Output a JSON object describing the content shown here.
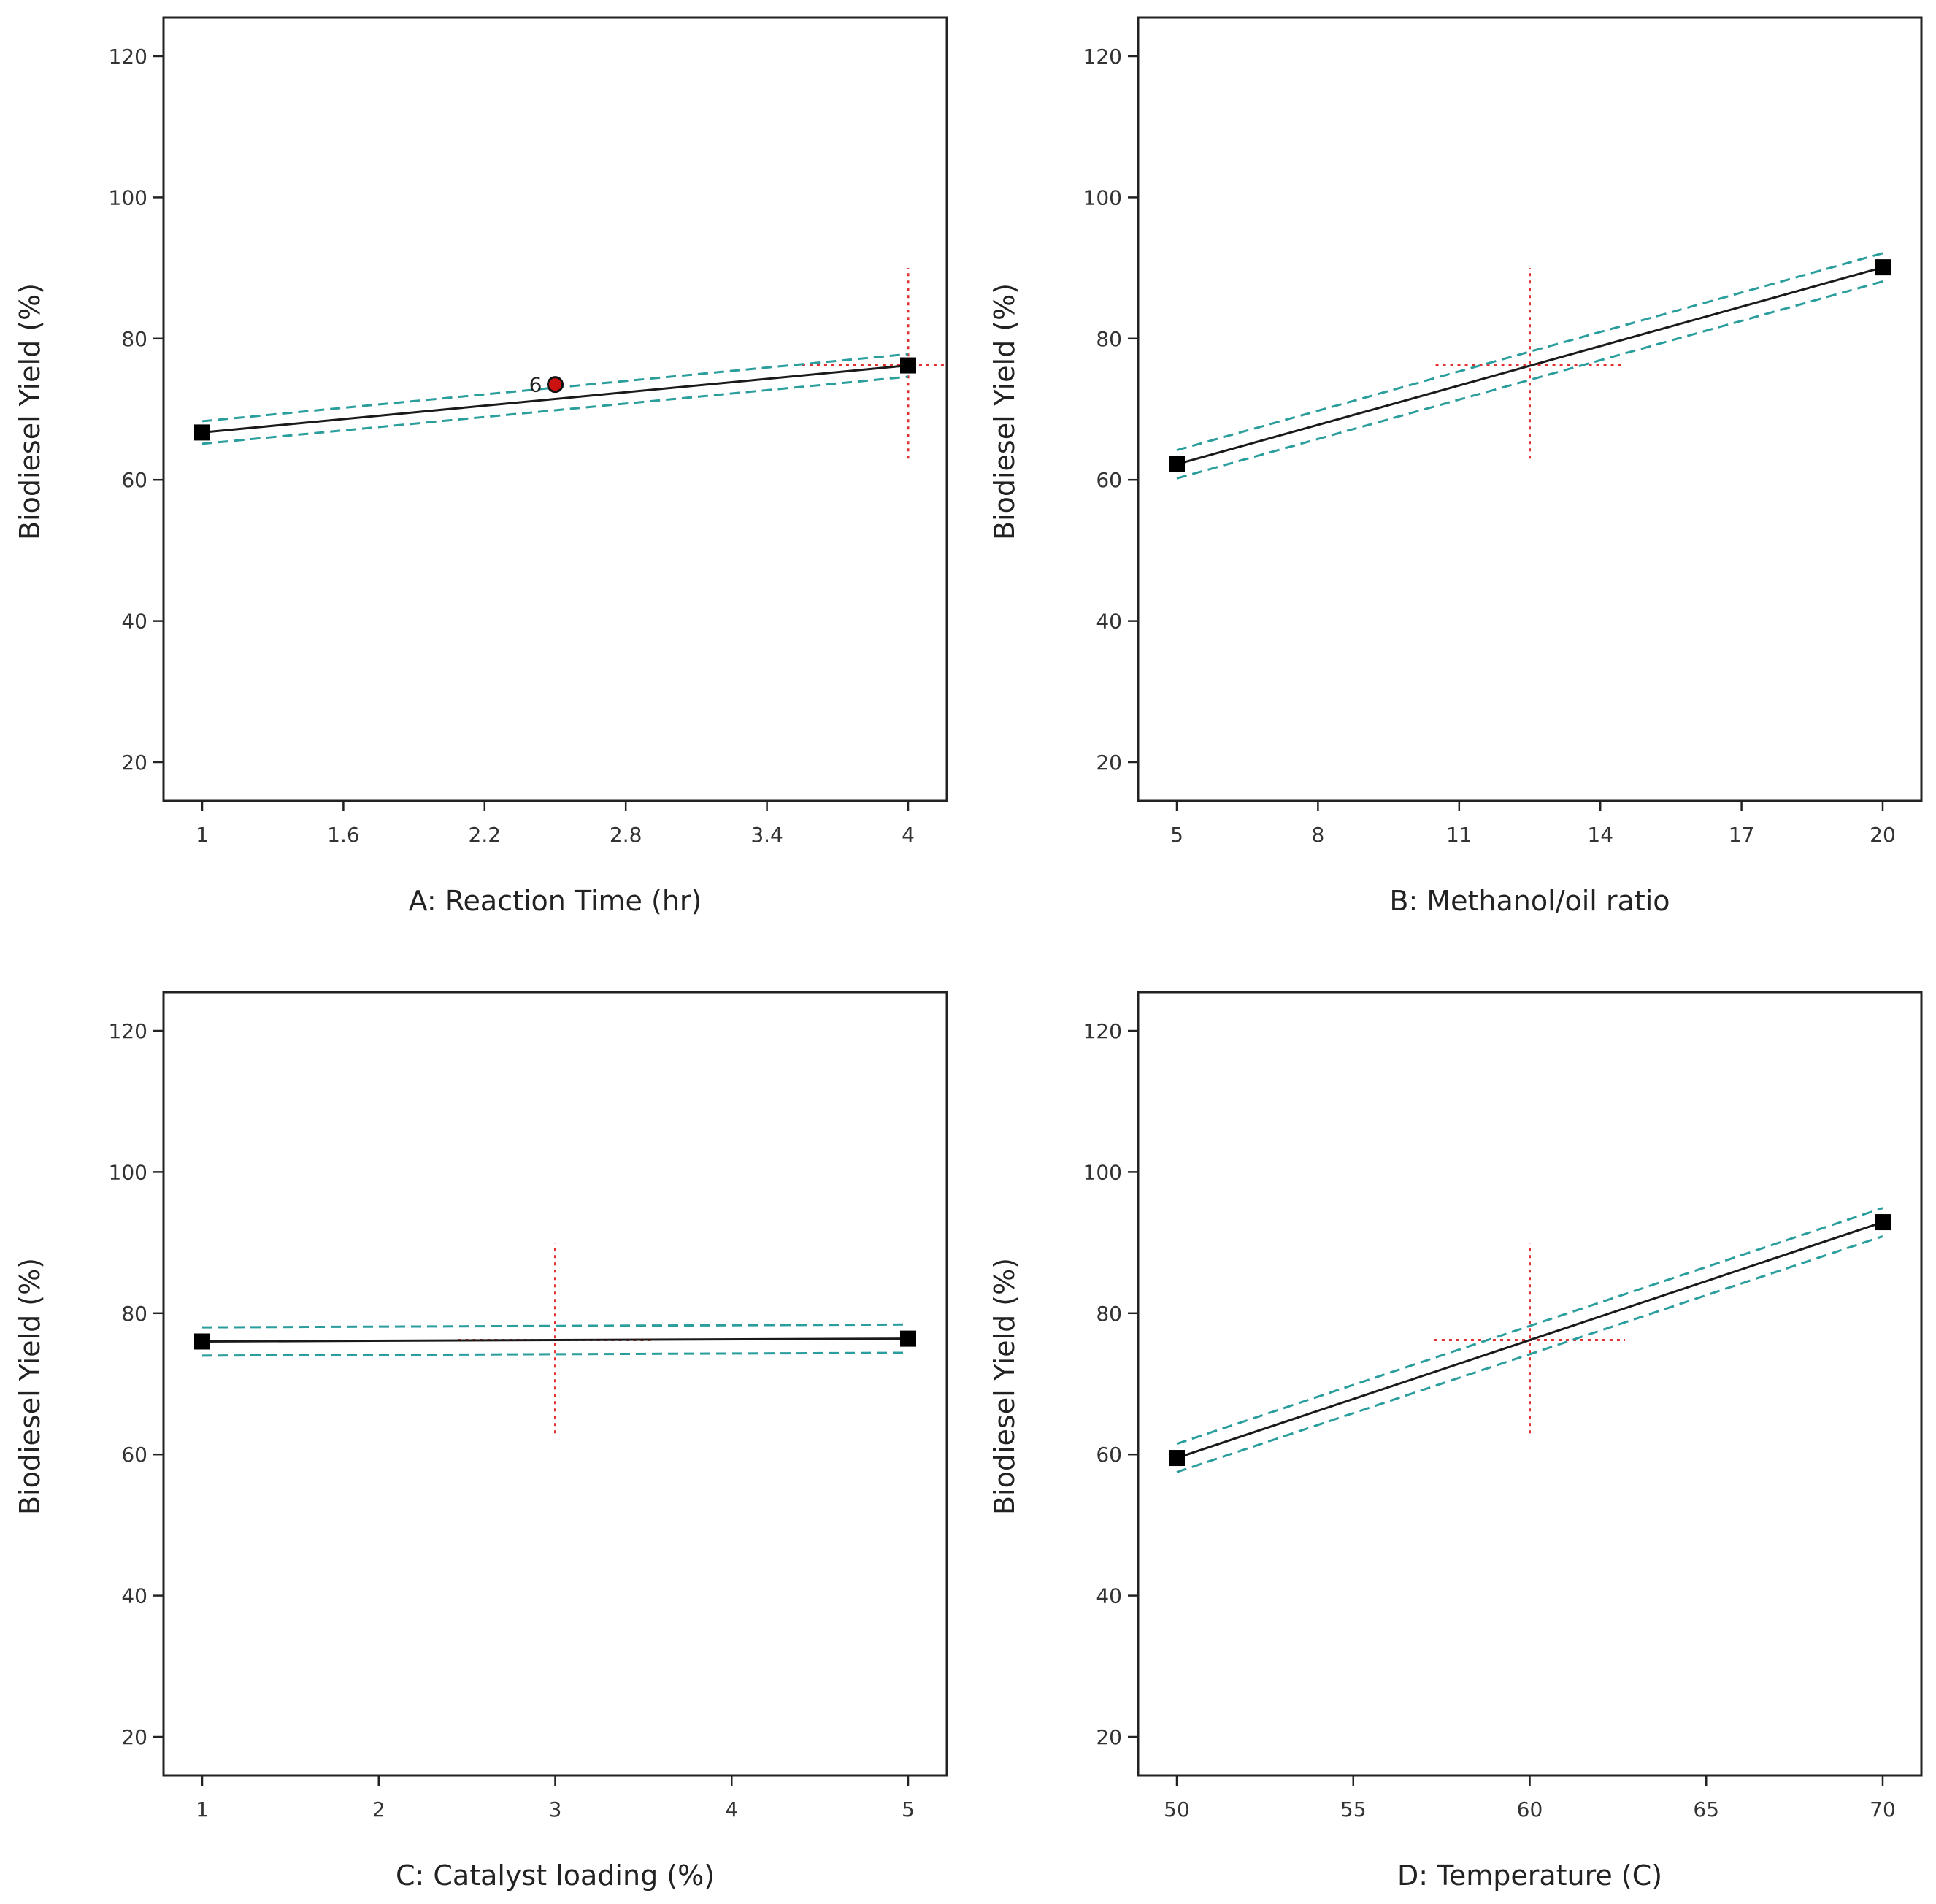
{
  "chart_data": [
    {
      "id": "A",
      "type": "line",
      "xlabel": "A: Reaction Time (hr)",
      "ylabel": "Biodiesel Yield (%)",
      "xlim": [
        1,
        4
      ],
      "ylim": [
        20,
        120
      ],
      "xticks": [
        "1",
        "1.6",
        "2.2",
        "2.8",
        "3.4",
        "4"
      ],
      "yticks": [
        "20",
        "40",
        "60",
        "80",
        "100",
        "120"
      ],
      "line": {
        "x": [
          1,
          4
        ],
        "y": [
          66.7,
          76.2
        ]
      },
      "ci_upper": {
        "x": [
          1,
          4
        ],
        "y": [
          68.3,
          77.8
        ]
      },
      "ci_lower": {
        "x": [
          1,
          4
        ],
        "y": [
          65.1,
          74.6
        ]
      },
      "endpoints": [
        {
          "x": 1,
          "y": 66.7
        },
        {
          "x": 4,
          "y": 76.2
        }
      ],
      "design_point": {
        "x": 2.5,
        "y": 73.5,
        "label": "6"
      },
      "crosshair": {
        "x": 4,
        "y": 76.2,
        "x_extent": [
          3.55,
          4.3
        ],
        "y_extent": [
          63,
          90
        ]
      }
    },
    {
      "id": "B",
      "type": "line",
      "xlabel": "B: Methanol/oil ratio",
      "ylabel": "Biodiesel Yield (%)",
      "xlim": [
        5,
        20
      ],
      "ylim": [
        20,
        120
      ],
      "xticks": [
        "5",
        "8",
        "11",
        "14",
        "17",
        "20"
      ],
      "yticks": [
        "20",
        "40",
        "60",
        "80",
        "100",
        "120"
      ],
      "line": {
        "x": [
          5,
          20
        ],
        "y": [
          62.2,
          90.1
        ]
      },
      "ci_upper": {
        "x": [
          5,
          20
        ],
        "y": [
          64.2,
          92.1
        ]
      },
      "ci_lower": {
        "x": [
          5,
          20
        ],
        "y": [
          60.2,
          88.1
        ]
      },
      "endpoints": [
        {
          "x": 5,
          "y": 62.2
        },
        {
          "x": 20,
          "y": 90.1
        }
      ],
      "crosshair": {
        "x": 12.5,
        "y": 76.2,
        "x_extent": [
          10.5,
          14.5
        ],
        "y_extent": [
          63,
          90
        ]
      }
    },
    {
      "id": "C",
      "type": "line",
      "xlabel": "C: Catalyst loading (%)",
      "ylabel": "Biodiesel Yield (%)",
      "xlim": [
        1,
        5
      ],
      "ylim": [
        20,
        120
      ],
      "xticks": [
        "1",
        "2",
        "3",
        "4",
        "5"
      ],
      "yticks": [
        "20",
        "40",
        "60",
        "80",
        "100",
        "120"
      ],
      "line": {
        "x": [
          1,
          5
        ],
        "y": [
          76.0,
          76.4
        ]
      },
      "ci_upper": {
        "x": [
          1,
          5
        ],
        "y": [
          78.0,
          78.4
        ]
      },
      "ci_lower": {
        "x": [
          1,
          5
        ],
        "y": [
          74.0,
          74.4
        ]
      },
      "endpoints": [
        {
          "x": 1,
          "y": 76.0
        },
        {
          "x": 5,
          "y": 76.4
        }
      ],
      "crosshair": {
        "x": 3,
        "y": 76.2,
        "x_extent": [
          2.45,
          3.55
        ],
        "y_extent": [
          63,
          90
        ]
      }
    },
    {
      "id": "D",
      "type": "line",
      "xlabel": "D: Temperature (C)",
      "ylabel": "Biodiesel Yield (%)",
      "xlim": [
        50,
        70
      ],
      "ylim": [
        20,
        120
      ],
      "xticks": [
        "50",
        "55",
        "60",
        "65",
        "70"
      ],
      "yticks": [
        "20",
        "40",
        "60",
        "80",
        "100",
        "120"
      ],
      "line": {
        "x": [
          50,
          70
        ],
        "y": [
          59.5,
          92.9
        ]
      },
      "ci_upper": {
        "x": [
          50,
          70
        ],
        "y": [
          61.5,
          94.9
        ]
      },
      "ci_lower": {
        "x": [
          50,
          70
        ],
        "y": [
          57.5,
          90.9
        ]
      },
      "endpoints": [
        {
          "x": 50,
          "y": 59.5
        },
        {
          "x": 70,
          "y": 92.9
        }
      ],
      "crosshair": {
        "x": 60,
        "y": 76.2,
        "x_extent": [
          57.3,
          62.7
        ],
        "y_extent": [
          63,
          90
        ]
      }
    }
  ],
  "colors": {
    "line": "#1a1a1a",
    "ci": "#2a9d9d",
    "crosshair": "#e03030",
    "marker": "#000000",
    "design_point": "#cc1111",
    "axis": "#222222"
  }
}
